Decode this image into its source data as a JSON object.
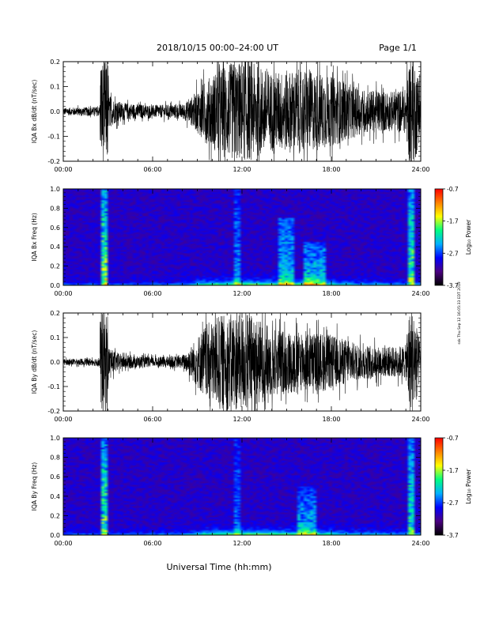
{
  "header": {
    "date_range": "2018/10/15   00:00–24:00 UT",
    "page": "Page 1/1"
  },
  "footer": {
    "xaxis_label": "Universal Time (hh:mm)",
    "side_note": "ssk Thu Sep 12 16:05:33 EDT 2019"
  },
  "chart_data": [
    {
      "type": "line",
      "ylabel": "IQA Bx dB/dt (nT/sec)",
      "x_ticks": [
        "00:00",
        "06:00",
        "12:00",
        "18:00",
        "24:00"
      ],
      "xlim": [
        0,
        24
      ],
      "ylim": [
        -0.2,
        0.2
      ],
      "y_ticks": [
        "-0.2",
        "-0.1",
        "0.0",
        "0.1",
        "0.2"
      ],
      "envelope": {
        "hours": [
          0,
          2,
          2.45,
          2.5,
          3.0,
          3.05,
          3.4,
          4,
          6,
          8,
          8.5,
          9.5,
          10.5,
          11.5,
          12.5,
          14,
          16,
          17.5,
          18.5,
          20,
          22,
          23,
          23.2,
          23.6,
          23.8,
          24
        ],
        "amplitude": [
          0.015,
          0.018,
          0.02,
          0.21,
          0.21,
          0.07,
          0.05,
          0.035,
          0.025,
          0.03,
          0.05,
          0.12,
          0.18,
          0.2,
          0.2,
          0.16,
          0.17,
          0.15,
          0.13,
          0.09,
          0.08,
          0.09,
          0.21,
          0.21,
          0.15,
          0.1
        ]
      }
    },
    {
      "type": "heatmap",
      "ylabel": "IQA Bx Freq (Hz)",
      "x_ticks": [
        "00:00",
        "06:00",
        "12:00",
        "18:00",
        "24:00"
      ],
      "xlim": [
        0,
        24
      ],
      "ylim": [
        0.0,
        1.0
      ],
      "y_ticks": [
        "0.0",
        "0.2",
        "0.4",
        "0.6",
        "0.8",
        "1.0"
      ],
      "colorbar": {
        "label": "Log₁₀ Power",
        "ticks": [
          "-0.7",
          "-1.7",
          "-2.7",
          "-3.7"
        ],
        "range": [
          -3.7,
          -0.7
        ],
        "colors": [
          "#000000",
          "#4b0082",
          "#0000ff",
          "#00b0ff",
          "#00ff80",
          "#ffff00",
          "#ff8000",
          "#ff0000"
        ]
      },
      "features": [
        {
          "hour_start": 2.45,
          "hour_end": 3.0,
          "max_freq": 1.0,
          "level": 0.55
        },
        {
          "hour_start": 11.5,
          "hour_end": 11.8,
          "max_freq": 1.0,
          "level": 0.25
        },
        {
          "hour_start": 14.5,
          "hour_end": 15.5,
          "max_freq": 0.7,
          "level": 0.35
        },
        {
          "hour_start": 16.2,
          "hour_end": 17.6,
          "max_freq": 0.45,
          "level": 0.35
        },
        {
          "hour_start": 23.05,
          "hour_end": 23.5,
          "max_freq": 1.0,
          "level": 0.5
        }
      ]
    },
    {
      "type": "line",
      "ylabel": "IQA By dB/dt (nT/sec)",
      "x_ticks": [
        "00:00",
        "06:00",
        "12:00",
        "18:00",
        "24:00"
      ],
      "xlim": [
        0,
        24
      ],
      "ylim": [
        -0.2,
        0.2
      ],
      "y_ticks": [
        "-0.2",
        "-0.1",
        "0.0",
        "0.1",
        "0.2"
      ],
      "envelope": {
        "hours": [
          0,
          2,
          2.45,
          2.5,
          3.0,
          3.05,
          3.4,
          4,
          6,
          8,
          8.5,
          9.5,
          10.5,
          11.5,
          12.5,
          14,
          16,
          17.5,
          18.5,
          20,
          22,
          23,
          23.2,
          23.6,
          23.8,
          24
        ],
        "amplitude": [
          0.012,
          0.015,
          0.02,
          0.21,
          0.21,
          0.06,
          0.045,
          0.03,
          0.02,
          0.025,
          0.06,
          0.15,
          0.19,
          0.2,
          0.2,
          0.14,
          0.12,
          0.12,
          0.1,
          0.07,
          0.06,
          0.07,
          0.21,
          0.21,
          0.12,
          0.08
        ]
      }
    },
    {
      "type": "heatmap",
      "ylabel": "IQA By Freq (Hz)",
      "x_ticks": [
        "00:00",
        "06:00",
        "12:00",
        "18:00",
        "24:00"
      ],
      "xlim": [
        0,
        24
      ],
      "ylim": [
        0.0,
        1.0
      ],
      "y_ticks": [
        "0.0",
        "0.2",
        "0.4",
        "0.6",
        "0.8",
        "1.0"
      ],
      "colorbar": {
        "label": "Log₁₀ Power",
        "ticks": [
          "-0.7",
          "-1.7",
          "-2.7",
          "-3.7"
        ],
        "range": [
          -3.7,
          -0.7
        ],
        "colors": [
          "#000000",
          "#4b0082",
          "#0000ff",
          "#00b0ff",
          "#00ff80",
          "#ffff00",
          "#ff8000",
          "#ff0000"
        ]
      },
      "features": [
        {
          "hour_start": 2.45,
          "hour_end": 3.0,
          "max_freq": 1.0,
          "level": 0.5
        },
        {
          "hour_start": 11.5,
          "hour_end": 11.8,
          "max_freq": 1.0,
          "level": 0.2
        },
        {
          "hour_start": 15.8,
          "hour_end": 17.0,
          "max_freq": 0.5,
          "level": 0.3
        },
        {
          "hour_start": 23.05,
          "hour_end": 23.5,
          "max_freq": 1.0,
          "level": 0.45
        }
      ]
    }
  ]
}
